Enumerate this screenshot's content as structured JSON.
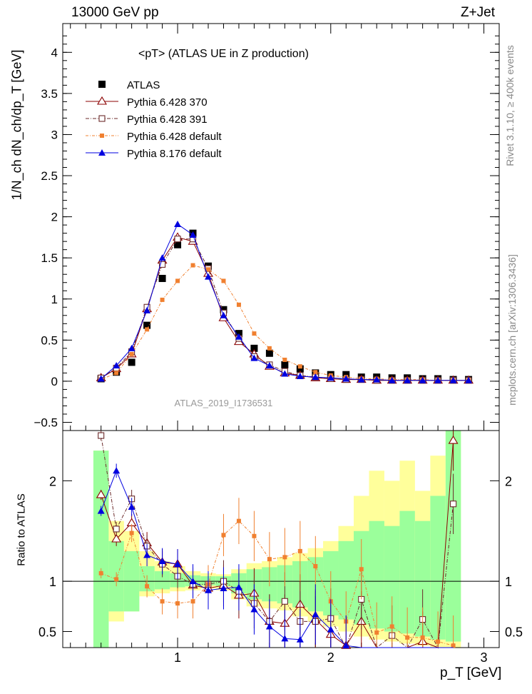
{
  "header": {
    "left": "13000 GeV pp",
    "right": "Z+Jet"
  },
  "side_text": {
    "rivet": "Rivet 3.1.10, ≥ 400k events",
    "mcplots": "mcplots.cern.ch [arXiv:1306.3436]"
  },
  "watermark": "ATLAS_2019_I1736531",
  "colors": {
    "atlas": "#000000",
    "p370": "#8b0000",
    "p391": "#6b2a2a",
    "p6def": "#f08030",
    "p8": "#0000e0",
    "band_green": "#9bff9b",
    "band_yellow": "#ffff9b"
  },
  "chart_data": [
    {
      "type": "line",
      "title": "<pT> (ATLAS UE in Z production)",
      "ylabel": "1/N_ch dN_ch/dp_T [GeV]",
      "yticks": [
        "−0.5",
        "0",
        "0.5",
        "1",
        "1.5",
        "2",
        "2.5",
        "3",
        "3.5",
        "4"
      ],
      "ylim": [
        -0.6,
        4.35
      ],
      "xlim": [
        0.25,
        3.1
      ],
      "legend": [
        "ATLAS",
        "Pythia 6.428 370",
        "Pythia 6.428 391",
        "Pythia 6.428 default",
        "Pythia 8.176 default"
      ],
      "x": [
        0.5,
        0.6,
        0.7,
        0.8,
        0.9,
        1.0,
        1.1,
        1.2,
        1.3,
        1.4,
        1.5,
        1.6,
        1.7,
        1.8,
        1.9,
        2.0,
        2.1,
        2.2,
        2.3,
        2.4,
        2.5,
        2.6,
        2.7,
        2.8,
        2.9
      ],
      "series": [
        {
          "name": "ATLAS",
          "values": [
            0.03,
            0.11,
            0.23,
            0.68,
            1.25,
            1.66,
            1.8,
            1.4,
            0.87,
            0.58,
            0.4,
            0.34,
            0.2,
            0.15,
            0.1,
            0.08,
            0.08,
            0.05,
            0.05,
            0.04,
            0.04,
            0.03,
            0.03,
            0.02,
            0.02
          ]
        },
        {
          "name": "Pythia 6.428 370",
          "values": [
            0.04,
            0.15,
            0.33,
            0.88,
            1.47,
            1.75,
            1.7,
            1.31,
            0.77,
            0.48,
            0.33,
            0.18,
            0.1,
            0.07,
            0.04,
            0.03,
            0.02,
            0.02,
            0.01,
            0.01,
            0.01,
            0.01,
            0.01,
            0.01,
            0.01
          ]
        },
        {
          "name": "Pythia 6.428 391",
          "values": [
            0.04,
            0.16,
            0.36,
            0.9,
            1.42,
            1.73,
            1.73,
            1.37,
            0.83,
            0.52,
            0.3,
            0.2,
            0.12,
            0.07,
            0.05,
            0.03,
            0.02,
            0.02,
            0.01,
            0.01,
            0.01,
            0.01,
            0.01,
            0.01,
            0.01
          ]
        },
        {
          "name": "Pythia 6.428 default",
          "values": [
            0.02,
            0.1,
            0.33,
            0.63,
            0.99,
            1.22,
            1.41,
            1.36,
            1.22,
            0.93,
            0.58,
            0.4,
            0.26,
            0.18,
            0.11,
            0.07,
            0.05,
            0.03,
            0.03,
            0.02,
            0.02,
            0.02,
            0.01,
            0.01,
            0.01
          ]
        },
        {
          "name": "Pythia 8.176 default",
          "values": [
            0.03,
            0.19,
            0.4,
            0.86,
            1.5,
            1.91,
            1.78,
            1.27,
            0.8,
            0.54,
            0.28,
            0.19,
            0.09,
            0.06,
            0.05,
            0.04,
            0.03,
            0.02,
            0.02,
            0.01,
            0.01,
            0.01,
            0.01,
            0.01,
            0.01
          ]
        }
      ]
    },
    {
      "type": "line",
      "ylabel": "Ratio to ATLAS",
      "xlabel": "p_T [GeV]",
      "xticks": [
        "1",
        "2",
        "3"
      ],
      "yticks": [
        "0.5",
        "1",
        "2"
      ],
      "ylim": [
        0.34,
        2.5
      ],
      "reference": 1,
      "x": [
        0.5,
        0.6,
        0.7,
        0.8,
        0.9,
        1.0,
        1.1,
        1.2,
        1.3,
        1.4,
        1.5,
        1.6,
        1.7,
        1.8,
        1.9,
        2.0,
        2.1,
        2.2,
        2.3,
        2.4,
        2.5,
        2.6,
        2.7,
        2.8
      ],
      "band_yellow": {
        "lo": [
          0.34,
          0.6,
          0.7,
          0.85,
          0.88,
          0.9,
          0.91,
          0.93,
          0.91,
          0.82,
          0.75,
          0.73,
          0.71,
          0.65,
          0.6,
          0.55,
          0.5,
          0.45,
          0.42,
          0.4,
          0.38,
          0.36,
          0.34,
          0.34
        ],
        "hi": [
          2.3,
          1.6,
          1.5,
          1.3,
          1.2,
          1.15,
          1.1,
          1.08,
          1.07,
          1.12,
          1.18,
          1.2,
          1.24,
          1.28,
          1.33,
          1.4,
          1.55,
          1.85,
          2.1,
          2.0,
          2.2,
          1.9,
          2.25,
          2.5
        ]
      },
      "band_green": {
        "lo": [
          0.34,
          0.7,
          0.7,
          0.9,
          0.92,
          0.94,
          0.95,
          0.96,
          0.95,
          0.88,
          0.82,
          0.8,
          0.78,
          0.74,
          0.7,
          0.66,
          0.62,
          0.57,
          0.53,
          0.5,
          0.48,
          0.45,
          0.42,
          0.4
        ],
        "hi": [
          2.3,
          1.4,
          1.3,
          1.15,
          1.1,
          1.08,
          1.06,
          1.05,
          1.05,
          1.08,
          1.12,
          1.14,
          1.16,
          1.2,
          1.24,
          1.3,
          1.4,
          1.5,
          1.6,
          1.55,
          1.7,
          1.6,
          1.85,
          2.5
        ]
      },
      "series": [
        {
          "name": "Pythia 6.428 370",
          "values": [
            1.86,
            1.42,
            1.58,
            1.38,
            1.19,
            1.17,
            0.96,
            0.93,
            0.96,
            0.86,
            0.88,
            0.6,
            0.58,
            0.77,
            0.62,
            0.47,
            0.36,
            0.6,
            0.33,
            0.33,
            0.3,
            0.4,
            0.33,
            2.4
          ]
        },
        {
          "name": "Pythia 6.428 391",
          "values": [
            2.45,
            1.52,
            1.82,
            1.35,
            1.17,
            1.05,
            0.97,
            0.97,
            1.0,
            0.9,
            0.78,
            0.6,
            0.8,
            0.6,
            0.6,
            0.63,
            0.34,
            0.82,
            0.3,
            0.46,
            0.3,
            0.62,
            0.3,
            1.77
          ]
        },
        {
          "name": "Pythia 6.428 default",
          "values": [
            1.08,
            1.02,
            1.48,
            0.95,
            0.8,
            0.78,
            0.8,
            0.97,
            1.46,
            1.6,
            1.45,
            1.22,
            1.24,
            1.3,
            1.15,
            0.8,
            0.6,
            1.12,
            0.49,
            0.55,
            0.44,
            0.44,
            0.4,
            0.36
          ]
        },
        {
          "name": "Pythia 8.176 default",
          "values": [
            1.7,
            2.1,
            1.74,
            1.26,
            1.2,
            1.17,
            1.0,
            0.91,
            0.93,
            0.94,
            0.72,
            0.55,
            0.43,
            0.42,
            0.67,
            0.52,
            0.36,
            0.33,
            0.33,
            0.33,
            0.33,
            0.33,
            0.33,
            0.33
          ]
        }
      ]
    }
  ]
}
